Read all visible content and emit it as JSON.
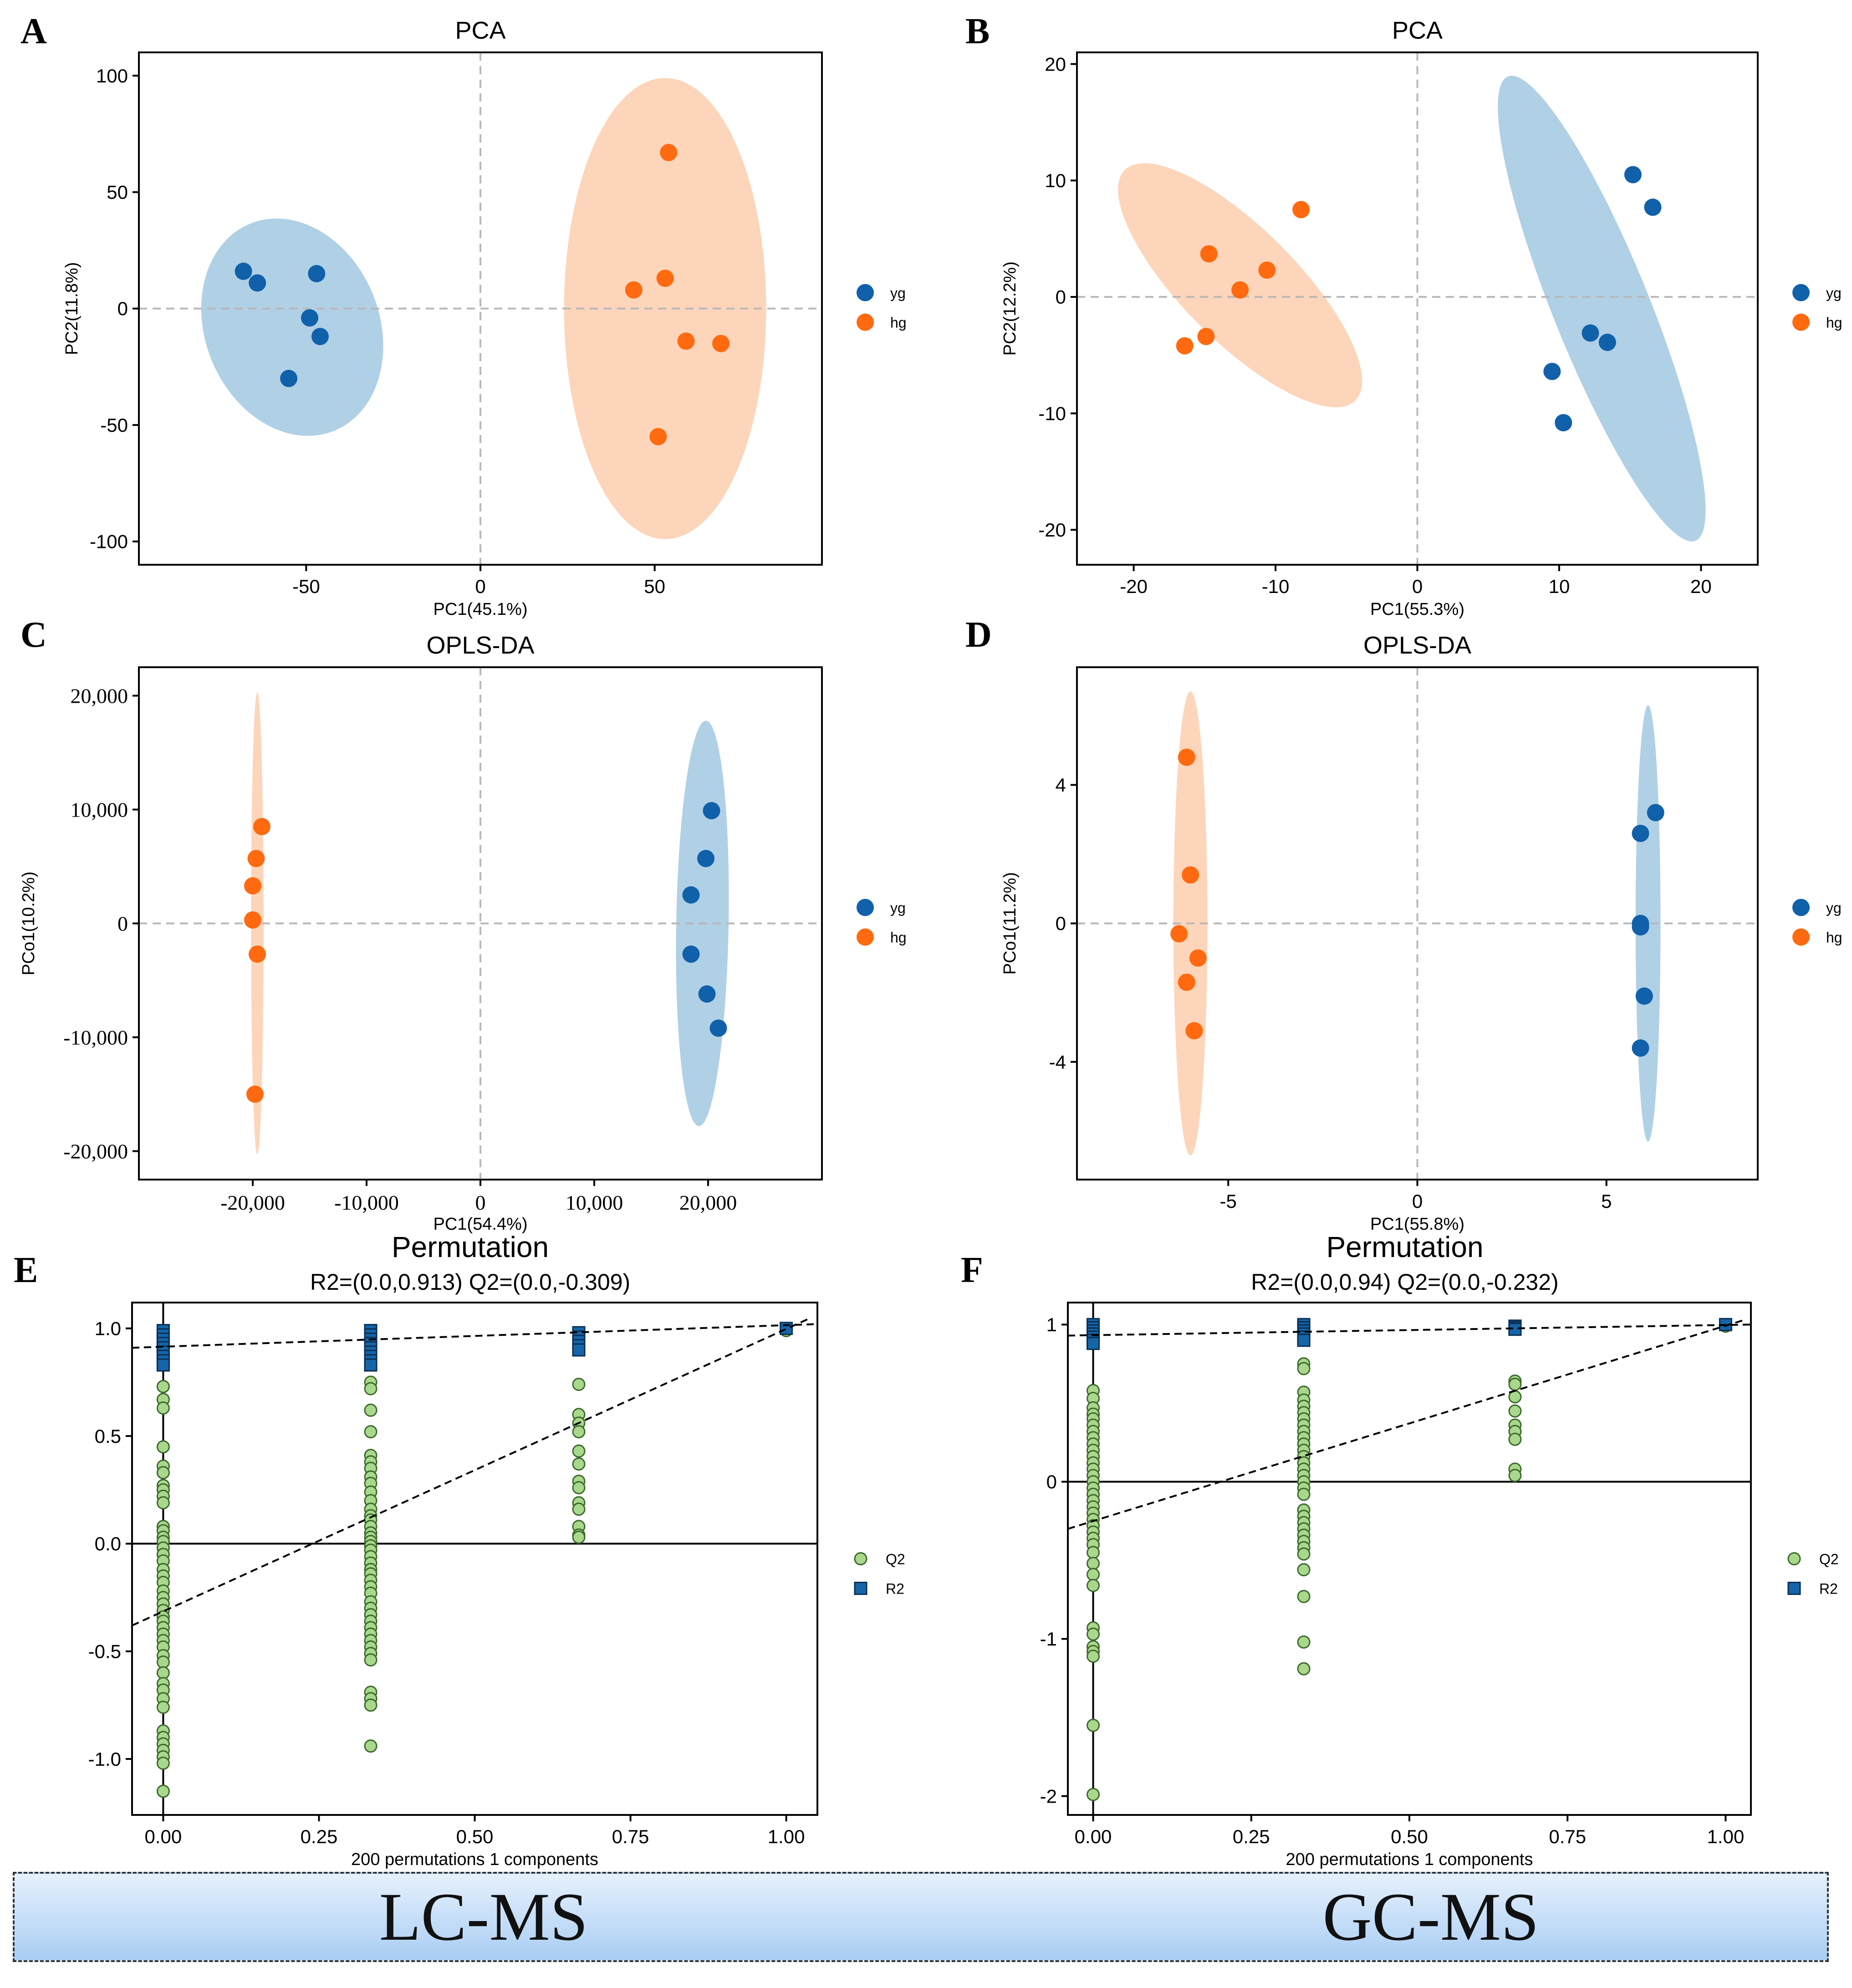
{
  "colors": {
    "yg": "#1060aa",
    "hg": "#ff6a10",
    "yg_ellipse": "#a7cbe3",
    "hg_ellipse": "#fdd0b3",
    "q2_fill": "#a9d88c",
    "q2_stroke": "#3c6a2c",
    "r2_fill": "#1565a8",
    "r2_stroke": "#0b2e55",
    "banner_top": "#e6f1fd",
    "banner_bottom": "#a9cdf3"
  },
  "banner": {
    "left_label": "LC-MS",
    "right_label": "GC-MS"
  },
  "chart_data": [
    {
      "panel": "A",
      "type": "scatter",
      "title": "PCA",
      "xlabel": "PC1(45.1%)",
      "ylabel": "PC2(11.8%)",
      "xlim": [
        -98,
        98
      ],
      "ylim": [
        -110,
        110
      ],
      "xticks": [
        -50,
        0,
        50
      ],
      "yticks": [
        -100,
        -50,
        0,
        50,
        100
      ],
      "xtick_labels": [
        "-50",
        "0",
        "50"
      ],
      "ytick_labels": [
        "-100",
        "-50",
        "0",
        "50",
        "100"
      ],
      "tick_font": "sans",
      "legend": [
        "yg",
        "hg"
      ],
      "series": [
        {
          "name": "yg",
          "points": [
            [
              -68,
              16
            ],
            [
              -64,
              11
            ],
            [
              -47,
              15
            ],
            [
              -49,
              -4
            ],
            [
              -46,
              -12
            ],
            [
              -55,
              -30
            ]
          ],
          "ellipse": {
            "cx": -54,
            "cy": -8,
            "rx": 25,
            "ry": 48,
            "angle": 22
          }
        },
        {
          "name": "hg",
          "points": [
            [
              54,
              67
            ],
            [
              44,
              8
            ],
            [
              53,
              13
            ],
            [
              59,
              -14
            ],
            [
              69,
              -15
            ],
            [
              51,
              -55
            ]
          ],
          "ellipse": {
            "cx": 53,
            "cy": 0,
            "rx": 29,
            "ry": 99,
            "angle": 0
          }
        }
      ]
    },
    {
      "panel": "B",
      "type": "scatter",
      "title": "PCA",
      "xlabel": "PC1(55.3%)",
      "ylabel": "PC2(12.2%)",
      "xlim": [
        -24,
        24
      ],
      "ylim": [
        -23,
        21
      ],
      "xticks": [
        -20,
        -10,
        0,
        10,
        20
      ],
      "yticks": [
        -20,
        -10,
        0,
        10,
        20
      ],
      "xtick_labels": [
        "-20",
        "-10",
        "0",
        "10",
        "20"
      ],
      "ytick_labels": [
        "-20",
        "-10",
        "0",
        "10",
        "20"
      ],
      "tick_font": "sans",
      "legend": [
        "yg",
        "hg"
      ],
      "series": [
        {
          "name": "yg",
          "points": [
            [
              15.2,
              10.5
            ],
            [
              16.6,
              7.7
            ],
            [
              12.2,
              -3.1
            ],
            [
              13.4,
              -3.9
            ],
            [
              9.5,
              -6.4
            ],
            [
              10.3,
              -10.8
            ]
          ],
          "ellipse": {
            "cx": 13,
            "cy": -1,
            "rx": 3.4,
            "ry": 21.5,
            "angle": 22
          }
        },
        {
          "name": "hg",
          "points": [
            [
              -8.2,
              7.5
            ],
            [
              -14.7,
              3.7
            ],
            [
              -10.6,
              2.3
            ],
            [
              -12.5,
              0.6
            ],
            [
              -14.9,
              -3.4
            ],
            [
              -16.4,
              -4.2
            ]
          ],
          "ellipse": {
            "cx": -12.5,
            "cy": 1,
            "rx": 4,
            "ry": 14,
            "angle": 45
          }
        }
      ]
    },
    {
      "panel": "C",
      "type": "scatter",
      "title": "OPLS-DA",
      "xlabel": "PC1(54.4%)",
      "ylabel": "PCo1(10.2%)",
      "xlim": [
        -30000,
        30000
      ],
      "ylim": [
        -22500,
        22500
      ],
      "xticks": [
        -20000,
        -10000,
        0,
        10000,
        20000
      ],
      "yticks": [
        -20000,
        -10000,
        0,
        10000,
        20000
      ],
      "xtick_labels": [
        "-20,000",
        "-10,000",
        "0",
        "10,000",
        "20,000"
      ],
      "ytick_labels": [
        "-20,000",
        "-10,000",
        "0",
        "10,000",
        "20,000"
      ],
      "tick_font": "serif",
      "legend": [
        "yg",
        "hg"
      ],
      "series": [
        {
          "name": "yg",
          "points": [
            [
              20300,
              9900
            ],
            [
              19800,
              5700
            ],
            [
              18500,
              2500
            ],
            [
              18500,
              -2700
            ],
            [
              19900,
              -6200
            ],
            [
              20900,
              -9200
            ]
          ],
          "ellipse": {
            "cx": 19500,
            "cy": 0,
            "rx": 2300,
            "ry": 17800,
            "angle": -1
          }
        },
        {
          "name": "hg",
          "points": [
            [
              -19200,
              8500
            ],
            [
              -19700,
              5700
            ],
            [
              -20000,
              3300
            ],
            [
              -20000,
              300
            ],
            [
              -19600,
              -2700
            ],
            [
              -19800,
              -15000
            ]
          ],
          "ellipse": {
            "cx": -19600,
            "cy": 0,
            "rx": 550,
            "ry": 20300,
            "angle": 0
          }
        }
      ]
    },
    {
      "panel": "D",
      "type": "scatter",
      "title": "OPLS-DA",
      "xlabel": "PC1(55.8%)",
      "ylabel": "PCo1(11.2%)",
      "xlim": [
        -9,
        9
      ],
      "ylim": [
        -7.4,
        7.4
      ],
      "xticks": [
        -5,
        0,
        5
      ],
      "yticks": [
        -4,
        0,
        4
      ],
      "xtick_labels": [
        "-5",
        "0",
        "5"
      ],
      "ytick_labels": [
        "-4",
        "0",
        "4"
      ],
      "tick_font": "sans",
      "legend": [
        "yg",
        "hg"
      ],
      "series": [
        {
          "name": "yg",
          "points": [
            [
              6.3,
              3.2
            ],
            [
              5.9,
              2.6
            ],
            [
              5.9,
              0
            ],
            [
              5.9,
              -0.1
            ],
            [
              6.0,
              -2.1
            ],
            [
              5.9,
              -3.6
            ]
          ],
          "ellipse": {
            "cx": 6.1,
            "cy": 0,
            "rx": 0.33,
            "ry": 6.3,
            "angle": 0
          }
        },
        {
          "name": "hg",
          "points": [
            [
              -6.1,
              4.8
            ],
            [
              -6.0,
              1.4
            ],
            [
              -6.3,
              -0.3
            ],
            [
              -5.8,
              -1.0
            ],
            [
              -6.1,
              -1.7
            ],
            [
              -5.9,
              -3.1
            ]
          ],
          "ellipse": {
            "cx": -6.0,
            "cy": 0,
            "rx": 0.45,
            "ry": 6.7,
            "angle": 0
          }
        }
      ]
    },
    {
      "panel": "E",
      "type": "scatter",
      "title": "Permutation",
      "subtitle": "R2=(0.0,0.913)   Q2=(0.0,-0.309)",
      "xlabel": "200 permutations 1 components",
      "ylabel": "",
      "xlim": [
        -0.05,
        1.05
      ],
      "ylim": [
        -1.26,
        1.12
      ],
      "xticks": [
        0,
        0.25,
        0.5,
        0.75,
        1
      ],
      "yticks": [
        -1,
        -0.5,
        0,
        0.5,
        1
      ],
      "xtick_labels": [
        "0.00",
        "0.25",
        "0.50",
        "0.75",
        "1.00"
      ],
      "ytick_labels": [
        "-1.0",
        "-0.5",
        "0.0",
        "0.5",
        "1.0"
      ],
      "tick_font": "sans",
      "legend": [
        "Q2",
        "R2"
      ],
      "r2_line": [
        [
          -0.05,
          0.91
        ],
        [
          1.05,
          1.02
        ]
      ],
      "q2_line": [
        [
          -0.05,
          -0.38
        ],
        [
          1.04,
          1.05
        ]
      ],
      "zero_line": 0,
      "vertical_line": 0,
      "series": [
        {
          "name": "Q2",
          "x": 0,
          "values": [
            0.73,
            0.67,
            0.63,
            0.45,
            0.36,
            0.33,
            0.27,
            0.25,
            0.22,
            0.19,
            0.08,
            0.06,
            0.03,
            0.01,
            -0.02,
            -0.05,
            -0.08,
            -0.12,
            -0.15,
            -0.18,
            -0.22,
            -0.25,
            -0.28,
            -0.31,
            -0.34,
            -0.36,
            -0.39,
            -0.42,
            -0.45,
            -0.48,
            -0.52,
            -0.55,
            -0.6,
            -0.65,
            -0.68,
            -0.72,
            -0.76,
            -0.87,
            -0.9,
            -0.93,
            -0.96,
            -0.99,
            -1.02,
            -1.15
          ]
        },
        {
          "name": "Q2",
          "x": 0.333,
          "values": [
            0.75,
            0.72,
            0.62,
            0.52,
            0.41,
            0.38,
            0.35,
            0.31,
            0.28,
            0.24,
            0.2,
            0.16,
            0.13,
            0.11,
            0.08,
            0.05,
            0.03,
            0.01,
            -0.01,
            -0.03,
            -0.06,
            -0.09,
            -0.12,
            -0.14,
            -0.17,
            -0.2,
            -0.23,
            -0.27,
            -0.3,
            -0.33,
            -0.36,
            -0.39,
            -0.42,
            -0.45,
            -0.48,
            -0.51,
            -0.54,
            -0.69,
            -0.72,
            -0.75,
            -0.94
          ]
        },
        {
          "name": "Q2",
          "x": 0.667,
          "values": [
            0.74,
            0.6,
            0.56,
            0.52,
            0.43,
            0.37,
            0.29,
            0.26,
            0.19,
            0.16,
            0.08,
            0.04,
            0.03
          ]
        },
        {
          "name": "Q2",
          "x": 1,
          "values": [
            0.99
          ]
        },
        {
          "name": "R2",
          "x": 0,
          "values": [
            0.99,
            0.97,
            0.95,
            0.93,
            0.91,
            0.89,
            0.87,
            0.85,
            0.83
          ]
        },
        {
          "name": "R2",
          "x": 0.333,
          "values": [
            0.99,
            0.97,
            0.95,
            0.93,
            0.91,
            0.89,
            0.87,
            0.85,
            0.83
          ]
        },
        {
          "name": "R2",
          "x": 0.667,
          "values": [
            0.98,
            0.96,
            0.94,
            0.92,
            0.9
          ]
        },
        {
          "name": "R2",
          "x": 1,
          "values": [
            1.0
          ]
        }
      ]
    },
    {
      "panel": "F",
      "type": "scatter",
      "title": "Permutation",
      "subtitle": "R2=(0.0,0.94)   Q2=(0.0,-0.232)",
      "xlabel": "200 permutations 1 components",
      "ylabel": "",
      "xlim": [
        -0.04,
        1.04
      ],
      "ylim": [
        -2.12,
        1.14
      ],
      "xticks": [
        0,
        0.25,
        0.5,
        0.75,
        1
      ],
      "yticks": [
        -2,
        -1,
        0,
        1
      ],
      "xtick_labels": [
        "0.00",
        "0.25",
        "0.50",
        "0.75",
        "1.00"
      ],
      "ytick_labels": [
        "-2",
        "-1",
        "0",
        "1"
      ],
      "tick_font": "sans",
      "legend": [
        "Q2",
        "R2"
      ],
      "r2_line": [
        [
          -0.04,
          0.93
        ],
        [
          1.04,
          1.0
        ]
      ],
      "q2_line": [
        [
          -0.04,
          -0.3
        ],
        [
          1.03,
          1.03
        ]
      ],
      "zero_line": 0,
      "vertical_line": 0,
      "series": [
        {
          "name": "Q2",
          "x": 0,
          "values": [
            0.58,
            0.53,
            0.47,
            0.43,
            0.4,
            0.36,
            0.32,
            0.28,
            0.24,
            0.2,
            0.16,
            0.12,
            0.08,
            0.04,
            0.0,
            -0.04,
            -0.08,
            -0.12,
            -0.16,
            -0.2,
            -0.24,
            -0.28,
            -0.32,
            -0.36,
            -0.4,
            -0.45,
            -0.52,
            -0.59,
            -0.66,
            -0.93,
            -0.97,
            -1.05,
            -1.08,
            -1.11,
            -1.55,
            -1.99
          ]
        },
        {
          "name": "Q2",
          "x": 0.333,
          "values": [
            0.75,
            0.72,
            0.57,
            0.52,
            0.48,
            0.44,
            0.4,
            0.36,
            0.32,
            0.28,
            0.24,
            0.2,
            0.16,
            0.12,
            0.08,
            0.04,
            0.0,
            -0.04,
            -0.08,
            -0.18,
            -0.22,
            -0.26,
            -0.3,
            -0.34,
            -0.38,
            -0.42,
            -0.46,
            -0.56,
            -0.73,
            -1.02,
            -1.19
          ]
        },
        {
          "name": "Q2",
          "x": 0.667,
          "values": [
            0.64,
            0.62,
            0.54,
            0.45,
            0.36,
            0.32,
            0.27,
            0.08,
            0.04
          ]
        },
        {
          "name": "Q2",
          "x": 1,
          "values": [
            0.99
          ]
        },
        {
          "name": "R2",
          "x": 0,
          "values": [
            1.0,
            0.98,
            0.96,
            0.94,
            0.92,
            0.9,
            0.88
          ]
        },
        {
          "name": "R2",
          "x": 0.333,
          "values": [
            1.0,
            0.98,
            0.96,
            0.94,
            0.92,
            0.9
          ]
        },
        {
          "name": "R2",
          "x": 0.667,
          "values": [
            0.99,
            0.98,
            0.97
          ]
        },
        {
          "name": "R2",
          "x": 1,
          "values": [
            1.0
          ]
        }
      ]
    }
  ]
}
